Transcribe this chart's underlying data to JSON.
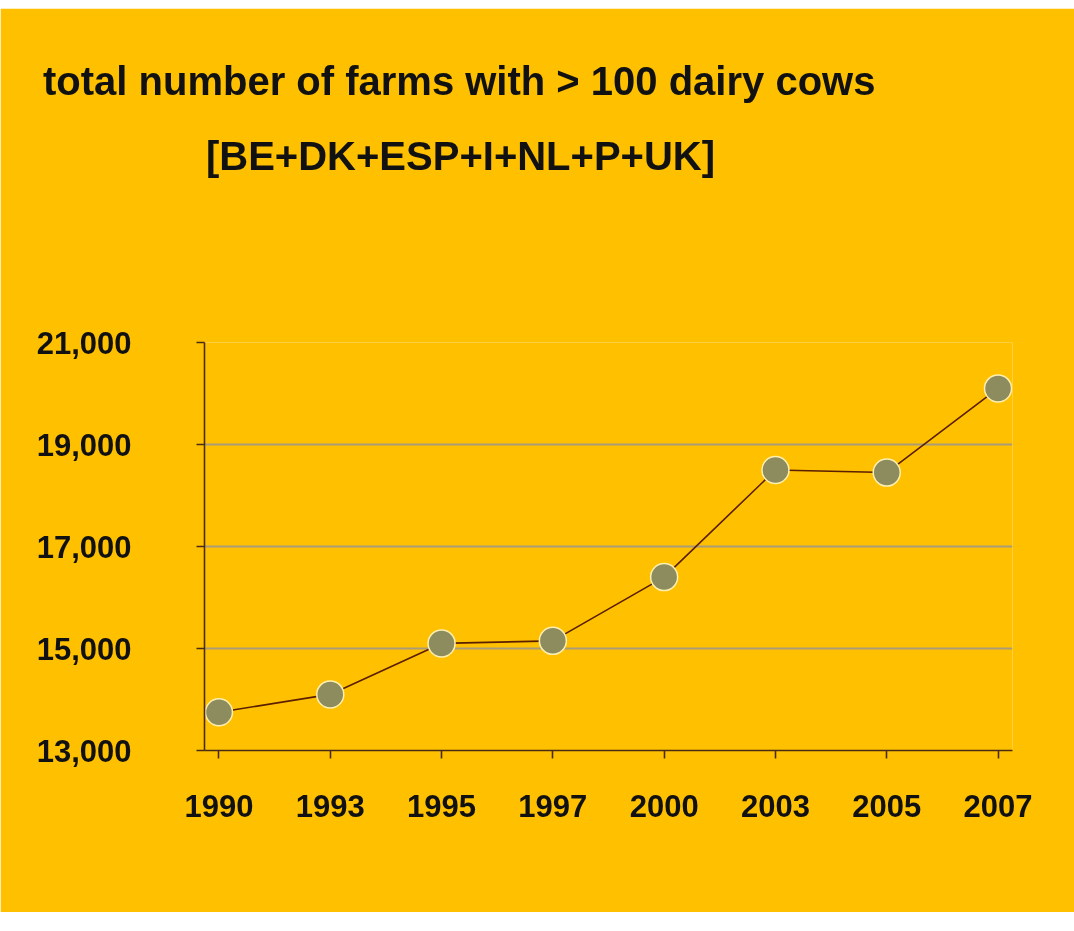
{
  "chart_data": {
    "type": "line",
    "title": "total number of farms with > 100 dairy cows",
    "subtitle": "[BE+DK+ESP+I+NL+P+UK]",
    "categories": [
      "1990",
      "1993",
      "1995",
      "1997",
      "2000",
      "2003",
      "2005",
      "2007"
    ],
    "series": [
      {
        "color": "#8c8c5e",
        "values": [
          13750,
          14100,
          15100,
          15150,
          16400,
          18500,
          18450,
          20100
        ]
      }
    ],
    "ylim": [
      13000,
      21000
    ],
    "yticks": [
      {
        "value": 13000,
        "label": "13,000"
      },
      {
        "value": 15000,
        "label": "15,000"
      },
      {
        "value": 17000,
        "label": "17,000"
      },
      {
        "value": 19000,
        "label": "19,000"
      },
      {
        "value": 21000,
        "label": "21,000"
      }
    ],
    "grid": "y",
    "marker": "circle",
    "line_style": "solid"
  }
}
